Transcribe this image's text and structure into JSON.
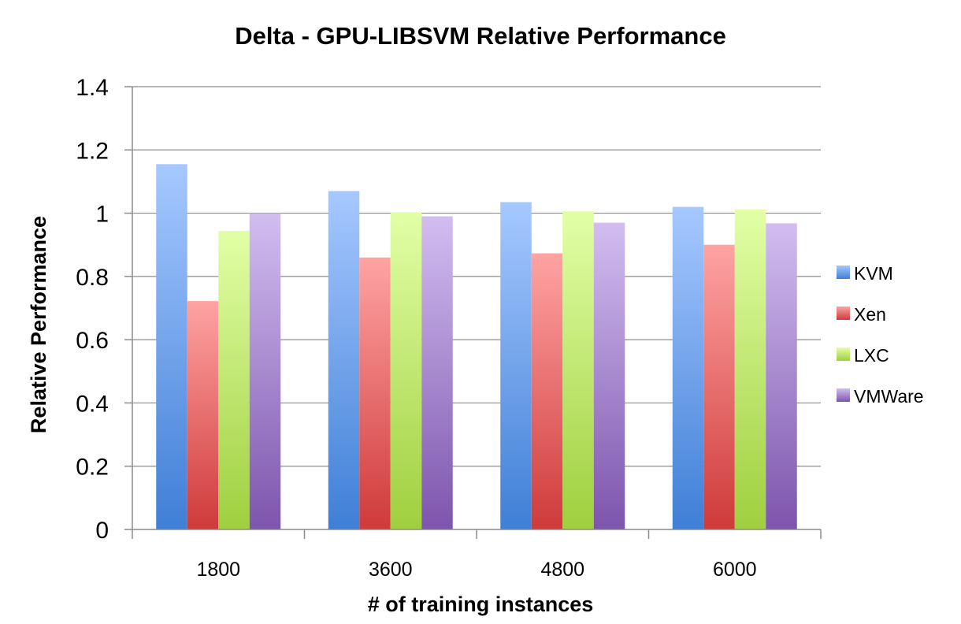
{
  "chart_data": {
    "type": "bar",
    "title": "Delta - GPU-LIBSVM Relative Performance",
    "xlabel": "# of training instances",
    "ylabel": "Relative Performance",
    "categories": [
      "1800",
      "3600",
      "4800",
      "6000"
    ],
    "series": [
      {
        "name": "KVM",
        "values": [
          1.155,
          1.07,
          1.035,
          1.02
        ],
        "color_light": "#a6c8ff",
        "color_dark": "#3f7fd6"
      },
      {
        "name": "Xen",
        "values": [
          0.722,
          0.86,
          0.873,
          0.9
        ],
        "color_light": "#ffa3a3",
        "color_dark": "#cf3a3a"
      },
      {
        "name": "LXC",
        "values": [
          0.944,
          1.003,
          1.006,
          1.012
        ],
        "color_light": "#e2ffa6",
        "color_dark": "#9fcf3f"
      },
      {
        "name": "VMWare",
        "values": [
          1.0,
          0.99,
          0.97,
          0.968
        ],
        "color_light": "#d2bdf0",
        "color_dark": "#7d55ad"
      }
    ],
    "ylim": [
      0,
      1.4
    ],
    "yticks": [
      "0",
      "0.2",
      "0.4",
      "0.6",
      "0.8",
      "1",
      "1.2",
      "1.4"
    ],
    "grid": true,
    "legend": "right"
  }
}
